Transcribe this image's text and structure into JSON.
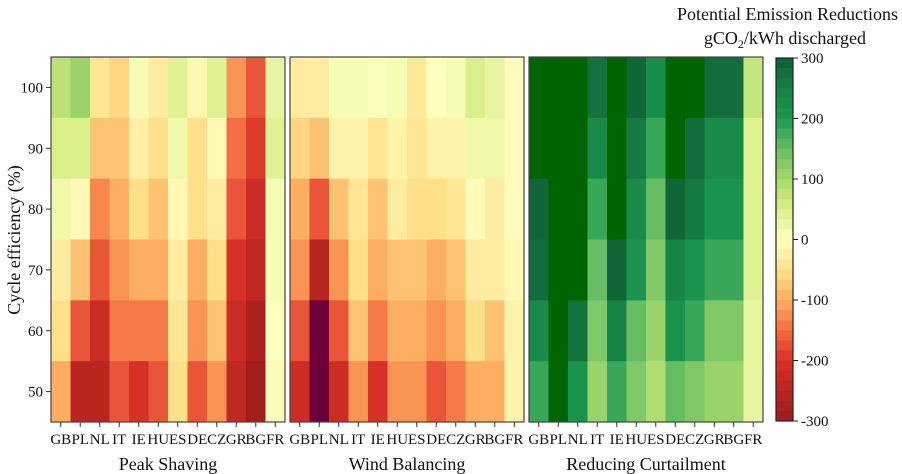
{
  "chart_data": {
    "type": "heatmap",
    "ylabel": "Cycle efficiency (%)",
    "y_values": [
      100,
      90,
      80,
      70,
      60,
      50
    ],
    "y_ticks": [
      100,
      90,
      80,
      70,
      60,
      50
    ],
    "ylim": [
      45,
      105
    ],
    "categories": [
      "GB",
      "PL",
      "NL",
      "IT",
      "IE",
      "HU",
      "ES",
      "DE",
      "CZ",
      "GR",
      "BG",
      "FR"
    ],
    "colorbar": {
      "title_line1": "Potential Emission Reductions",
      "title_line2_prefix": "gCO",
      "title_line2_sub": "2",
      "title_line2_suffix": "/kWh discharged",
      "range": [
        -300,
        300
      ],
      "ticks": [
        "300",
        "200",
        "100",
        "0",
        "-100",
        "-200",
        "-300"
      ],
      "tick_values": [
        300,
        200,
        100,
        0,
        -100,
        -200,
        -300
      ],
      "colormap": "red-yellow-green",
      "over_color": "#006400",
      "under_color": "#6b003b"
    },
    "panels": [
      {
        "title": "Peak Shaving",
        "values": [
          [
            80,
            110,
            -40,
            -60,
            10,
            -30,
            40,
            -15,
            40,
            -120,
            -170,
            30
          ],
          [
            50,
            50,
            -80,
            -80,
            -25,
            -50,
            20,
            -50,
            -10,
            -150,
            -190,
            40
          ],
          [
            20,
            -10,
            -130,
            -100,
            -50,
            -80,
            -10,
            -50,
            -30,
            -170,
            -220,
            10
          ],
          [
            -30,
            -80,
            -170,
            -120,
            -100,
            -100,
            -30,
            -100,
            -50,
            -200,
            -240,
            10
          ],
          [
            -50,
            -170,
            -220,
            -140,
            -140,
            -140,
            -40,
            -120,
            -80,
            -220,
            -270,
            0
          ],
          [
            -100,
            -250,
            -250,
            -170,
            -200,
            -170,
            -50,
            -170,
            -120,
            -240,
            -290,
            -5
          ]
        ]
      },
      {
        "title": "Wind Balancing",
        "values": [
          [
            -30,
            -30,
            10,
            10,
            5,
            10,
            -35,
            0,
            10,
            50,
            30,
            -5
          ],
          [
            -60,
            -80,
            -20,
            -20,
            -40,
            -20,
            -40,
            -20,
            -20,
            20,
            20,
            -5
          ],
          [
            -100,
            -170,
            -80,
            -40,
            -80,
            -30,
            -50,
            -50,
            -40,
            -5,
            -30,
            -5
          ],
          [
            -120,
            -250,
            -120,
            -50,
            -100,
            -80,
            -80,
            -100,
            -80,
            -30,
            -30,
            -10
          ],
          [
            -170,
            -320,
            -170,
            -80,
            -140,
            -100,
            -100,
            -120,
            -100,
            -50,
            -80,
            -20
          ],
          [
            -220,
            -320,
            -220,
            -120,
            -200,
            -120,
            -120,
            -170,
            -140,
            -100,
            -100,
            -20
          ]
        ]
      },
      {
        "title": "Reducing Curtailment",
        "values": [
          [
            320,
            320,
            320,
            270,
            320,
            290,
            220,
            320,
            320,
            280,
            280,
            70
          ],
          [
            320,
            320,
            320,
            230,
            320,
            260,
            180,
            320,
            280,
            230,
            230,
            40
          ],
          [
            290,
            320,
            320,
            180,
            320,
            230,
            150,
            290,
            260,
            210,
            210,
            40
          ],
          [
            280,
            320,
            320,
            150,
            290,
            210,
            130,
            240,
            210,
            180,
            180,
            40
          ],
          [
            230,
            320,
            270,
            130,
            240,
            150,
            110,
            210,
            180,
            130,
            130,
            30
          ],
          [
            180,
            320,
            210,
            110,
            180,
            130,
            90,
            150,
            130,
            110,
            110,
            30
          ]
        ]
      }
    ]
  }
}
